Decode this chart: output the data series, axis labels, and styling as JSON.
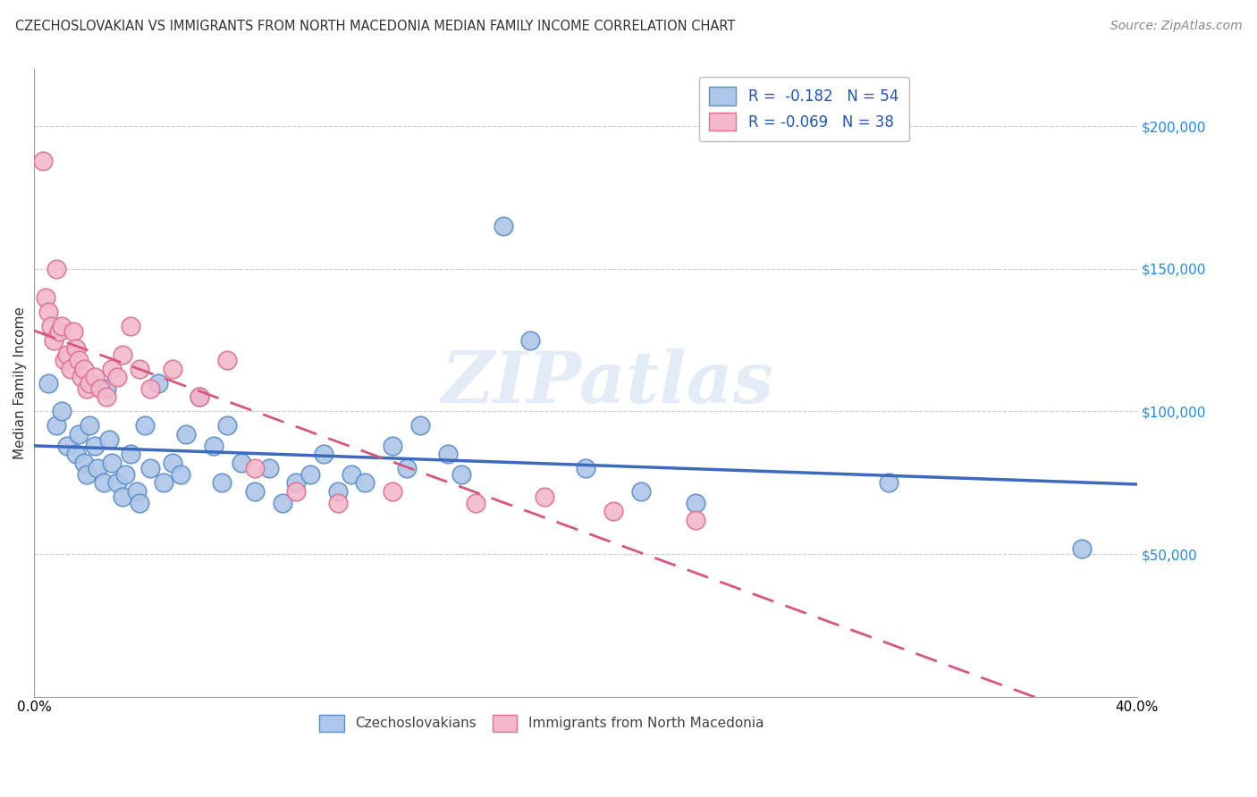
{
  "title": "CZECHOSLOVAKIAN VS IMMIGRANTS FROM NORTH MACEDONIA MEDIAN FAMILY INCOME CORRELATION CHART",
  "source": "Source: ZipAtlas.com",
  "ylabel": "Median Family Income",
  "xmin": 0.0,
  "xmax": 0.4,
  "ymin": 0,
  "ymax": 220000,
  "yticks": [
    0,
    50000,
    100000,
    150000,
    200000
  ],
  "ytick_labels": [
    "",
    "$50,000",
    "$100,000",
    "$150,000",
    "$200,000"
  ],
  "xticks": [
    0.0,
    0.05,
    0.1,
    0.15,
    0.2,
    0.25,
    0.3,
    0.35,
    0.4
  ],
  "blue_color": "#aec6e8",
  "pink_color": "#f2b8cc",
  "blue_edge": "#5b8fc9",
  "pink_edge": "#e0708e",
  "blue_line_color": "#3b6abf",
  "pink_line_color": "#d9567a",
  "watermark": "ZIPatlas",
  "legend_r_blue": "R =  -0.182",
  "legend_n_blue": "N = 54",
  "legend_r_pink": "R = -0.069",
  "legend_n_pink": "N = 38",
  "series1_label": "Czechoslovakians",
  "series2_label": "Immigrants from North Macedonia",
  "blue_x": [
    0.005,
    0.008,
    0.01,
    0.012,
    0.015,
    0.016,
    0.018,
    0.019,
    0.02,
    0.022,
    0.023,
    0.025,
    0.026,
    0.027,
    0.028,
    0.03,
    0.032,
    0.033,
    0.035,
    0.037,
    0.038,
    0.04,
    0.042,
    0.045,
    0.047,
    0.05,
    0.053,
    0.055,
    0.06,
    0.065,
    0.068,
    0.07,
    0.075,
    0.08,
    0.085,
    0.09,
    0.095,
    0.1,
    0.105,
    0.11,
    0.115,
    0.12,
    0.13,
    0.135,
    0.14,
    0.15,
    0.155,
    0.17,
    0.18,
    0.2,
    0.22,
    0.24,
    0.31,
    0.38
  ],
  "blue_y": [
    110000,
    95000,
    100000,
    88000,
    85000,
    92000,
    82000,
    78000,
    95000,
    88000,
    80000,
    75000,
    108000,
    90000,
    82000,
    75000,
    70000,
    78000,
    85000,
    72000,
    68000,
    95000,
    80000,
    110000,
    75000,
    82000,
    78000,
    92000,
    105000,
    88000,
    75000,
    95000,
    82000,
    72000,
    80000,
    68000,
    75000,
    78000,
    85000,
    72000,
    78000,
    75000,
    88000,
    80000,
    95000,
    85000,
    78000,
    165000,
    125000,
    80000,
    72000,
    68000,
    75000,
    52000
  ],
  "pink_x": [
    0.003,
    0.004,
    0.005,
    0.006,
    0.007,
    0.008,
    0.009,
    0.01,
    0.011,
    0.012,
    0.013,
    0.014,
    0.015,
    0.016,
    0.017,
    0.018,
    0.019,
    0.02,
    0.022,
    0.024,
    0.026,
    0.028,
    0.03,
    0.032,
    0.035,
    0.038,
    0.042,
    0.05,
    0.06,
    0.07,
    0.08,
    0.095,
    0.11,
    0.13,
    0.16,
    0.185,
    0.21,
    0.24
  ],
  "pink_y": [
    188000,
    140000,
    135000,
    130000,
    125000,
    150000,
    128000,
    130000,
    118000,
    120000,
    115000,
    128000,
    122000,
    118000,
    112000,
    115000,
    108000,
    110000,
    112000,
    108000,
    105000,
    115000,
    112000,
    120000,
    130000,
    115000,
    108000,
    115000,
    105000,
    118000,
    80000,
    72000,
    68000,
    72000,
    68000,
    70000,
    65000,
    62000
  ]
}
